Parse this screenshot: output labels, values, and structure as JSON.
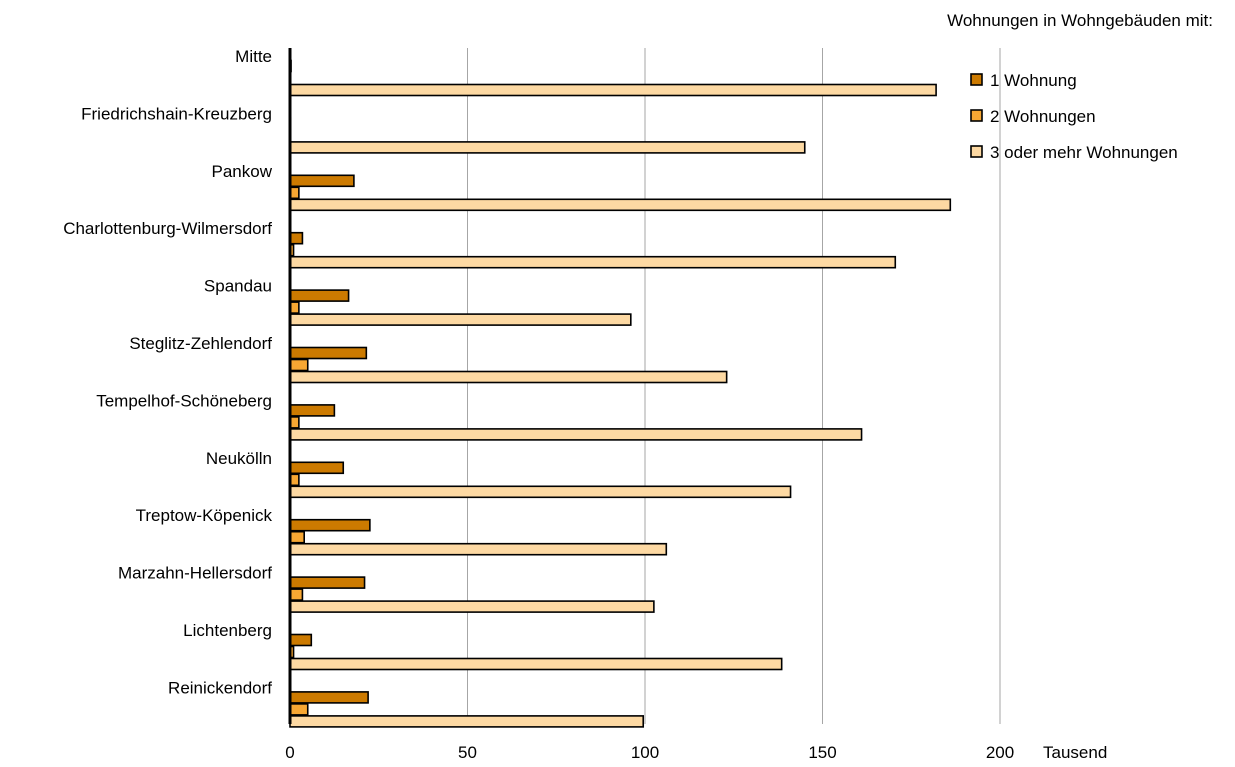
{
  "chart_data": {
    "type": "bar",
    "orientation": "horizontal",
    "legend_title": "Wohnungen in Wohngebäuden mit:",
    "legend_position": "top-right",
    "unit_label": "Tausend",
    "categories": [
      "Mitte",
      "Friedrichshain-Kreuzberg",
      "Pankow",
      "Charlottenburg-Wilmersdorf",
      "Spandau",
      "Steglitz-Zehlendorf",
      "Tempelhof-Schöneberg",
      "Neukölln",
      "Treptow-Köpenick",
      "Marzahn-Hellersdorf",
      "Lichtenberg",
      "Reinickendorf"
    ],
    "series": [
      {
        "name": "1 Wohnung",
        "color": "#cc7a00",
        "values": [
          0.3,
          0.2,
          18,
          3.5,
          16.5,
          21.5,
          12.5,
          15,
          22.5,
          21,
          6,
          22
        ]
      },
      {
        "name": "2 Wohnungen",
        "color": "#f7a733",
        "values": [
          0.2,
          0.2,
          2.5,
          1,
          2.5,
          5,
          2.5,
          2.5,
          4,
          3.5,
          1,
          5
        ]
      },
      {
        "name": "3 oder mehr Wohnungen",
        "color": "#fdd9a3",
        "values": [
          182,
          145,
          186,
          170.5,
          96,
          123,
          161,
          141,
          106,
          102.5,
          138.5,
          99.5
        ]
      }
    ],
    "xlim": [
      0,
      200
    ],
    "xticks": [
      0,
      50,
      100,
      150,
      200
    ],
    "grid": true
  }
}
